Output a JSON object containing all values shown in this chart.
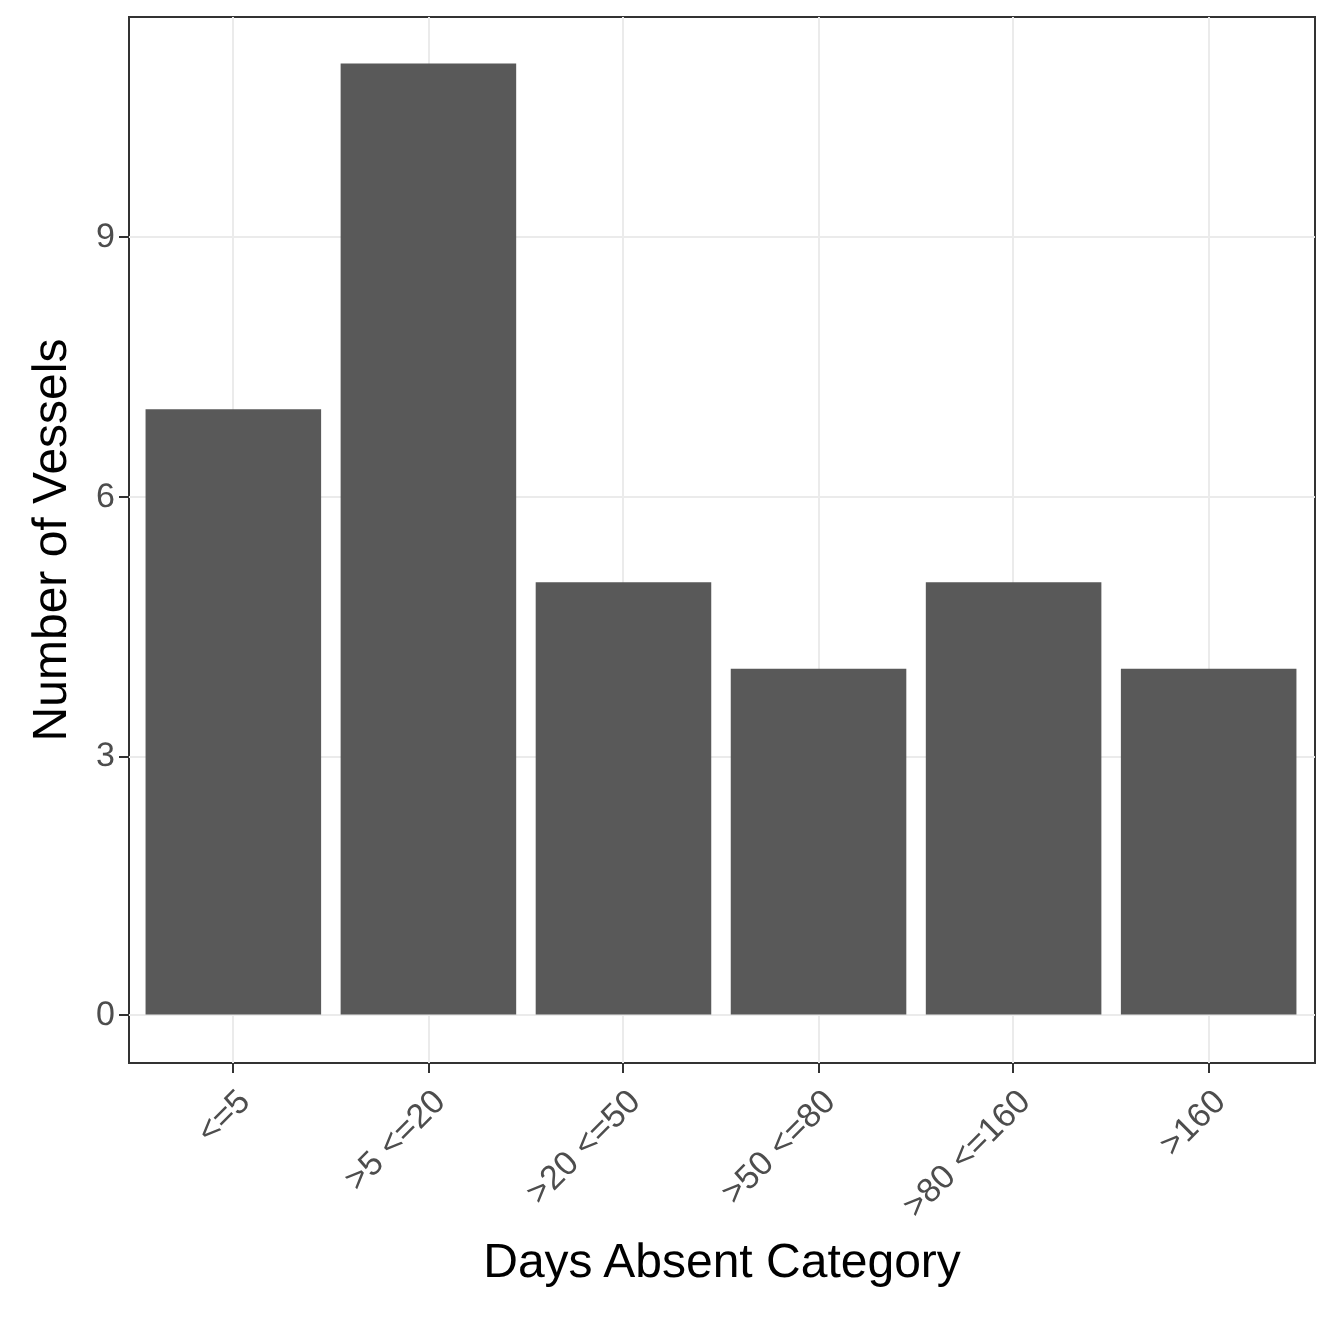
{
  "chart_data": {
    "type": "bar",
    "xlabel": "Days Absent Category",
    "ylabel": "Number of Vessels",
    "categories": [
      "<=5",
      ">5 <=20",
      ">20 <=50",
      ">50 <=80",
      ">80 <=160",
      ">160"
    ],
    "values": [
      7,
      11,
      5,
      4,
      5,
      4
    ],
    "color": "#595959",
    "ylim": [
      -0.55,
      11.55
    ],
    "yticks": [
      0,
      3,
      6,
      9
    ],
    "grid": true
  }
}
